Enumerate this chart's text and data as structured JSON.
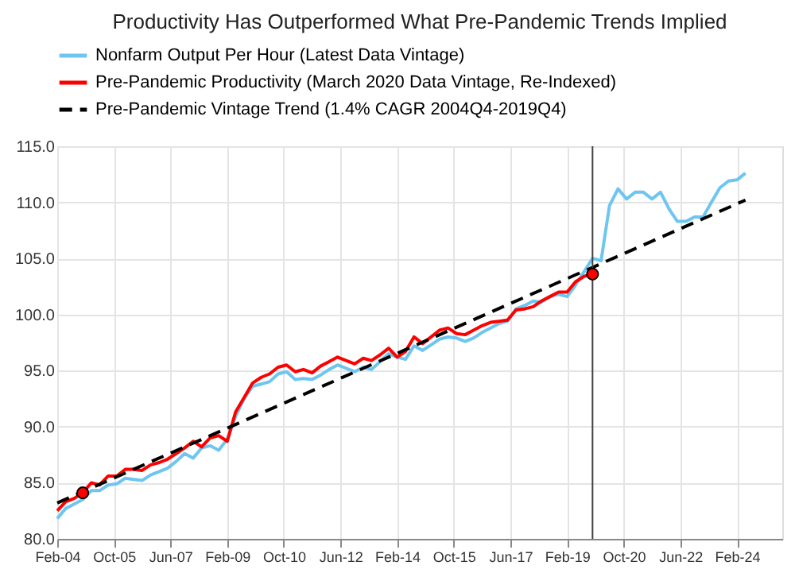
{
  "chart_data": {
    "type": "line",
    "title": "Productivity Has Outperformed What Pre-Pandemic Trends Implied",
    "series": [
      {
        "name": "Nonfarm Output Per Hour (Latest Data Vintage)",
        "color": "#6ec6f0",
        "x": [
          "2004-02",
          "2004-05",
          "2004-08",
          "2004-11",
          "2005-02",
          "2005-05",
          "2005-08",
          "2005-11",
          "2006-02",
          "2006-05",
          "2006-08",
          "2006-11",
          "2007-02",
          "2007-05",
          "2007-08",
          "2007-11",
          "2008-02",
          "2008-05",
          "2008-08",
          "2008-11",
          "2009-02",
          "2009-05",
          "2009-08",
          "2009-11",
          "2010-02",
          "2010-05",
          "2010-08",
          "2010-11",
          "2011-02",
          "2011-05",
          "2011-08",
          "2011-11",
          "2012-02",
          "2012-05",
          "2012-08",
          "2012-11",
          "2013-02",
          "2013-05",
          "2013-08",
          "2013-11",
          "2014-02",
          "2014-05",
          "2014-08",
          "2014-11",
          "2015-02",
          "2015-05",
          "2015-08",
          "2015-11",
          "2016-02",
          "2016-05",
          "2016-08",
          "2016-11",
          "2017-02",
          "2017-05",
          "2017-08",
          "2017-11",
          "2018-02",
          "2018-05",
          "2018-08",
          "2018-11",
          "2019-02",
          "2019-05",
          "2019-08",
          "2019-11",
          "2020-02",
          "2020-05",
          "2020-08",
          "2020-11",
          "2021-02",
          "2021-05",
          "2021-08",
          "2021-11",
          "2022-02",
          "2022-05",
          "2022-08",
          "2022-11",
          "2023-02",
          "2023-05",
          "2023-08",
          "2023-11",
          "2024-02",
          "2024-05"
        ],
        "values": [
          81.8,
          82.7,
          83.1,
          83.5,
          84.3,
          84.3,
          84.8,
          84.9,
          85.4,
          85.3,
          85.2,
          85.7,
          86.0,
          86.3,
          86.9,
          87.6,
          87.2,
          88.1,
          88.3,
          87.9,
          88.9,
          90.9,
          92.5,
          93.6,
          93.8,
          94.0,
          94.7,
          94.9,
          94.2,
          94.3,
          94.2,
          94.6,
          95.1,
          95.5,
          95.2,
          94.9,
          95.3,
          95.1,
          95.8,
          96.5,
          96.2,
          96.0,
          97.2,
          96.8,
          97.3,
          97.8,
          98.0,
          97.9,
          97.6,
          97.9,
          98.4,
          98.8,
          99.2,
          99.4,
          100.5,
          100.8,
          101.2,
          101.1,
          101.6,
          101.8,
          101.6,
          102.6,
          103.8,
          105.0,
          104.8,
          109.7,
          111.2,
          110.3,
          110.9,
          110.9,
          110.3,
          110.9,
          109.4,
          108.3,
          108.3,
          108.7,
          108.7,
          110.0,
          111.3,
          111.9,
          112.0,
          112.6
        ]
      },
      {
        "name": "Pre-Pandemic Productivity (March 2020 Data Vintage, Re-Indexed)",
        "color": "#ff0000",
        "x": [
          "2004-02",
          "2004-05",
          "2004-08",
          "2004-11",
          "2005-02",
          "2005-05",
          "2005-08",
          "2005-11",
          "2006-02",
          "2006-05",
          "2006-08",
          "2006-11",
          "2007-02",
          "2007-05",
          "2007-08",
          "2007-11",
          "2008-02",
          "2008-05",
          "2008-08",
          "2008-11",
          "2009-02",
          "2009-05",
          "2009-08",
          "2009-11",
          "2010-02",
          "2010-05",
          "2010-08",
          "2010-11",
          "2011-02",
          "2011-05",
          "2011-08",
          "2011-11",
          "2012-02",
          "2012-05",
          "2012-08",
          "2012-11",
          "2013-02",
          "2013-05",
          "2013-08",
          "2013-11",
          "2014-02",
          "2014-05",
          "2014-08",
          "2014-11",
          "2015-02",
          "2015-05",
          "2015-08",
          "2015-11",
          "2016-02",
          "2016-05",
          "2016-08",
          "2016-11",
          "2017-02",
          "2017-05",
          "2017-08",
          "2017-11",
          "2018-02",
          "2018-05",
          "2018-08",
          "2018-11",
          "2019-02",
          "2019-05",
          "2019-08",
          "2019-11"
        ],
        "values": [
          82.5,
          83.3,
          83.6,
          84.1,
          85.0,
          84.8,
          85.6,
          85.6,
          86.2,
          86.2,
          86.1,
          86.6,
          86.8,
          87.1,
          87.6,
          88.1,
          88.7,
          88.2,
          89.0,
          89.2,
          88.7,
          91.3,
          92.6,
          93.9,
          94.4,
          94.7,
          95.3,
          95.5,
          94.9,
          95.1,
          94.8,
          95.4,
          95.8,
          96.2,
          95.9,
          95.6,
          96.1,
          95.9,
          96.4,
          97.0,
          96.2,
          96.7,
          98.0,
          97.4,
          98.0,
          98.6,
          98.8,
          98.3,
          98.2,
          98.6,
          99.0,
          99.3,
          99.4,
          99.5,
          100.4,
          100.5,
          100.7,
          101.2,
          101.6,
          102.0,
          102.0,
          102.9,
          103.4,
          103.6
        ]
      },
      {
        "name": "Pre-Pandemic Vintage Trend (1.4% CAGR 2004Q4-2019Q4)",
        "color": "#000000",
        "line_style": "dashed",
        "x": [
          "2004-02",
          "2024-05"
        ],
        "values": [
          83.2,
          110.2
        ]
      },
      {
        "type": "scatter",
        "marker": "circle",
        "color": "#ff0000",
        "x": [
          "2004-11",
          "2019-11"
        ],
        "values": [
          84.1,
          103.6
        ]
      }
    ],
    "xlim": [
      "2004-02",
      "2025-06"
    ],
    "xticks": [
      {
        "value": "2004-02",
        "label": "Feb-04"
      },
      {
        "value": "2005-10",
        "label": "Oct-05"
      },
      {
        "value": "2007-06",
        "label": "Jun-07"
      },
      {
        "value": "2009-02",
        "label": "Feb-09"
      },
      {
        "value": "2010-10",
        "label": "Oct-10"
      },
      {
        "value": "2012-06",
        "label": "Jun-12"
      },
      {
        "value": "2014-02",
        "label": "Feb-14"
      },
      {
        "value": "2015-10",
        "label": "Oct-15"
      },
      {
        "value": "2017-06",
        "label": "Jun-17"
      },
      {
        "value": "2019-02",
        "label": "Feb-19"
      },
      {
        "value": "2020-10",
        "label": "Oct-20"
      },
      {
        "value": "2022-06",
        "label": "Jun-22"
      },
      {
        "value": "2024-02",
        "label": "Feb-24"
      }
    ],
    "ylim": [
      80,
      115
    ],
    "yticks": [
      {
        "value": 80,
        "label": "80.0"
      },
      {
        "value": 85,
        "label": "85.0"
      },
      {
        "value": 90,
        "label": "90.0"
      },
      {
        "value": 95,
        "label": "95.0"
      },
      {
        "value": 100,
        "label": "100.0"
      },
      {
        "value": 105,
        "label": "105.0"
      },
      {
        "value": 110,
        "label": "110.0"
      },
      {
        "value": 115,
        "label": "115.0"
      }
    ],
    "ref_lines": [
      {
        "axis": "x",
        "value": "2019-11",
        "color": "#404040",
        "line_style": "solid"
      }
    ],
    "grid": true,
    "legend": "top"
  }
}
